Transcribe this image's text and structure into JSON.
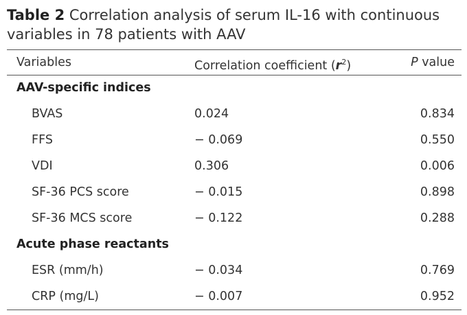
{
  "caption": {
    "label": "Table 2",
    "text": "Correlation analysis of serum IL-16 with continuous variables in 78 patients with AAV"
  },
  "header": {
    "variables": "Variables",
    "corr_prefix": "Correlation coefficient (",
    "corr_r": "r",
    "corr_sup": "2",
    "corr_suffix": ")",
    "p_italic": "P",
    "p_rest": " value"
  },
  "sections": [
    {
      "title": "AAV-specific indices",
      "rows": [
        {
          "variable": "BVAS",
          "r": "0.024",
          "p": "0.834"
        },
        {
          "variable": "FFS",
          "r": "− 0.069",
          "p": "0.550"
        },
        {
          "variable": "VDI",
          "r": "0.306",
          "p": "0.006"
        },
        {
          "variable": "SF-36 PCS score",
          "r": "− 0.015",
          "p": "0.898"
        },
        {
          "variable": "SF-36 MCS score",
          "r": "− 0.122",
          "p": "0.288"
        }
      ]
    },
    {
      "title": "Acute phase reactants",
      "rows": [
        {
          "variable": "ESR (mm/h)",
          "r": "− 0.034",
          "p": "0.769"
        },
        {
          "variable": "CRP (mg/L)",
          "r": "− 0.007",
          "p": "0.952"
        }
      ]
    }
  ]
}
